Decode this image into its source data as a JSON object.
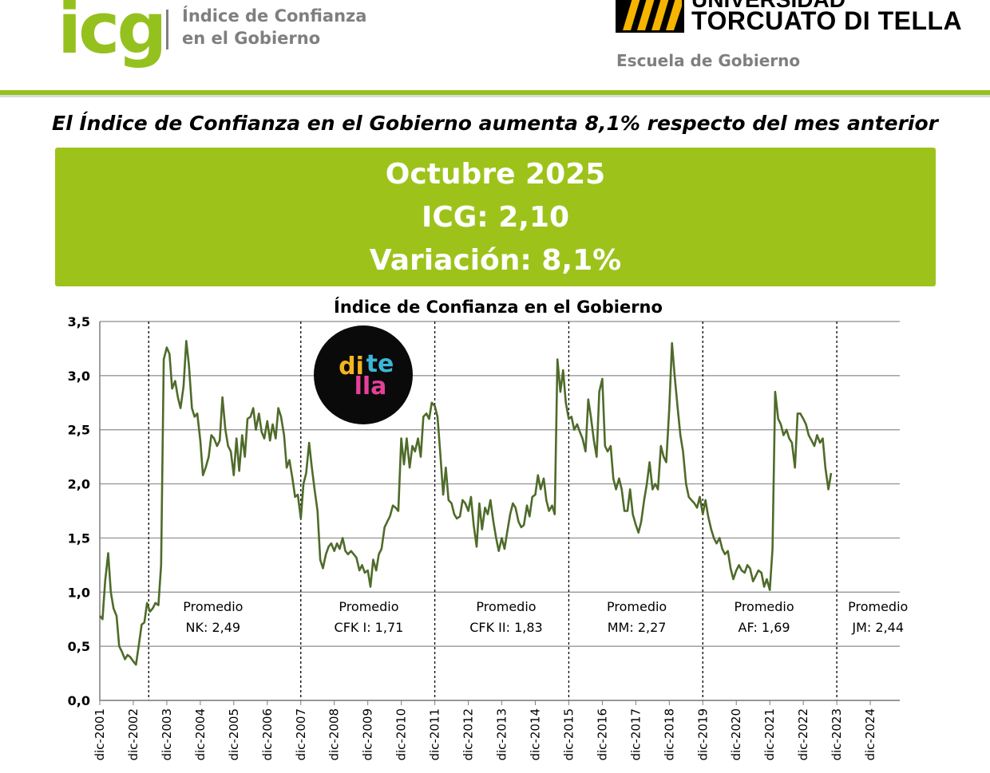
{
  "header": {
    "logo_mark": "icg",
    "logo_text_line1": "Índice de Confianza",
    "logo_text_line2": "en el Gobierno",
    "university_line1": "UNIVERSIDAD",
    "university_line2": "TORCUATO DI TELLA",
    "school": "Escuela de Gobierno"
  },
  "headline": "El Índice de Confianza en el Gobierno aumenta 8,1% respecto del mes anterior",
  "banner": {
    "month": "Octubre 2025",
    "icg": "ICG: 2,10",
    "variation": "Variación: 8,1%"
  },
  "colors": {
    "brand_green": "#9dc31b",
    "line": "#4f6b2a",
    "text_grey": "#7f7f7f"
  },
  "ditella_badge": {
    "line1": "di",
    "line2": "te",
    "line3": "lla"
  },
  "chart_data": {
    "type": "line",
    "title": "Índice de Confianza en el Gobierno",
    "xlabel": "",
    "ylabel": "",
    "ylim": [
      0,
      3.5
    ],
    "xlim": [
      2001.92,
      2025.8
    ],
    "y_ticks": [
      "0,0",
      "0,5",
      "1,0",
      "1,5",
      "2,0",
      "2,5",
      "3,0",
      "3,5"
    ],
    "x_ticks": [
      "dic-2001",
      "dic-2002",
      "dic-2003",
      "dic-2004",
      "dic-2005",
      "dic-2006",
      "dic-2007",
      "dic-2008",
      "dic-2009",
      "dic-2010",
      "dic-2011",
      "dic-2012",
      "dic-2013",
      "dic-2014",
      "dic-2015",
      "dic-2016",
      "dic-2017",
      "dic-2018",
      "dic-2019",
      "dic-2020",
      "dic-2021",
      "dic-2022",
      "dic-2023",
      "dic-2024"
    ],
    "x_tick_values": [
      2001.92,
      2002.92,
      2003.92,
      2004.92,
      2005.92,
      2006.92,
      2007.92,
      2008.92,
      2009.92,
      2010.92,
      2011.92,
      2012.92,
      2013.92,
      2014.92,
      2015.92,
      2016.92,
      2017.92,
      2018.92,
      2019.92,
      2020.92,
      2021.92,
      2022.92,
      2023.92,
      2024.92
    ],
    "grid": true,
    "term_dividers": [
      2003.38,
      2007.92,
      2011.92,
      2015.92,
      2019.92,
      2023.92
    ],
    "term_annotations": [
      {
        "x": 2005.3,
        "line1": "Promedio",
        "line2": "NK: 2,49"
      },
      {
        "x": 2009.95,
        "line1": "Promedio",
        "line2": "CFK I: 1,71"
      },
      {
        "x": 2014.05,
        "line1": "Promedio",
        "line2": "CFK II: 1,83"
      },
      {
        "x": 2017.95,
        "line1": "Promedio",
        "line2": "MM: 2,27"
      },
      {
        "x": 2021.75,
        "line1": "Promedio",
        "line2": "AF: 1,69"
      },
      {
        "x": 2025.15,
        "line1": "Promedio",
        "line2": "JM: 2,44"
      }
    ],
    "series": [
      {
        "name": "ICG",
        "points": [
          [
            2001.92,
            0.78
          ],
          [
            2002.0,
            0.75
          ],
          [
            2002.08,
            1.1
          ],
          [
            2002.17,
            1.36
          ],
          [
            2002.25,
            1.0
          ],
          [
            2002.33,
            0.85
          ],
          [
            2002.42,
            0.78
          ],
          [
            2002.5,
            0.5
          ],
          [
            2002.58,
            0.45
          ],
          [
            2002.67,
            0.38
          ],
          [
            2002.75,
            0.42
          ],
          [
            2002.83,
            0.4
          ],
          [
            2002.92,
            0.36
          ],
          [
            2003.0,
            0.33
          ],
          [
            2003.08,
            0.5
          ],
          [
            2003.17,
            0.7
          ],
          [
            2003.25,
            0.72
          ],
          [
            2003.33,
            0.9
          ],
          [
            2003.42,
            0.82
          ],
          [
            2003.5,
            0.85
          ],
          [
            2003.58,
            0.9
          ],
          [
            2003.67,
            0.88
          ],
          [
            2003.75,
            1.25
          ],
          [
            2003.83,
            3.15
          ],
          [
            2003.92,
            3.26
          ],
          [
            2004.0,
            3.2
          ],
          [
            2004.08,
            2.88
          ],
          [
            2004.17,
            2.95
          ],
          [
            2004.25,
            2.8
          ],
          [
            2004.33,
            2.7
          ],
          [
            2004.42,
            2.9
          ],
          [
            2004.5,
            3.32
          ],
          [
            2004.58,
            3.1
          ],
          [
            2004.67,
            2.7
          ],
          [
            2004.75,
            2.62
          ],
          [
            2004.83,
            2.65
          ],
          [
            2004.92,
            2.4
          ],
          [
            2005.0,
            2.08
          ],
          [
            2005.08,
            2.15
          ],
          [
            2005.17,
            2.25
          ],
          [
            2005.25,
            2.45
          ],
          [
            2005.33,
            2.42
          ],
          [
            2005.42,
            2.35
          ],
          [
            2005.5,
            2.4
          ],
          [
            2005.58,
            2.8
          ],
          [
            2005.67,
            2.5
          ],
          [
            2005.75,
            2.35
          ],
          [
            2005.83,
            2.3
          ],
          [
            2005.92,
            2.08
          ],
          [
            2006.0,
            2.42
          ],
          [
            2006.08,
            2.12
          ],
          [
            2006.17,
            2.45
          ],
          [
            2006.25,
            2.25
          ],
          [
            2006.33,
            2.6
          ],
          [
            2006.42,
            2.62
          ],
          [
            2006.5,
            2.7
          ],
          [
            2006.58,
            2.5
          ],
          [
            2006.67,
            2.65
          ],
          [
            2006.75,
            2.48
          ],
          [
            2006.83,
            2.42
          ],
          [
            2006.92,
            2.58
          ],
          [
            2007.0,
            2.4
          ],
          [
            2007.08,
            2.55
          ],
          [
            2007.17,
            2.42
          ],
          [
            2007.25,
            2.7
          ],
          [
            2007.33,
            2.62
          ],
          [
            2007.42,
            2.45
          ],
          [
            2007.5,
            2.15
          ],
          [
            2007.58,
            2.22
          ],
          [
            2007.67,
            2.05
          ],
          [
            2007.75,
            1.88
          ],
          [
            2007.83,
            1.9
          ],
          [
            2007.92,
            1.68
          ],
          [
            2008.0,
            2.0
          ],
          [
            2008.08,
            2.1
          ],
          [
            2008.17,
            2.38
          ],
          [
            2008.25,
            2.15
          ],
          [
            2008.33,
            1.95
          ],
          [
            2008.42,
            1.75
          ],
          [
            2008.5,
            1.3
          ],
          [
            2008.58,
            1.22
          ],
          [
            2008.67,
            1.35
          ],
          [
            2008.75,
            1.42
          ],
          [
            2008.83,
            1.45
          ],
          [
            2008.92,
            1.38
          ],
          [
            2009.0,
            1.45
          ],
          [
            2009.08,
            1.4
          ],
          [
            2009.17,
            1.5
          ],
          [
            2009.25,
            1.38
          ],
          [
            2009.33,
            1.35
          ],
          [
            2009.42,
            1.38
          ],
          [
            2009.5,
            1.35
          ],
          [
            2009.58,
            1.32
          ],
          [
            2009.67,
            1.2
          ],
          [
            2009.75,
            1.25
          ],
          [
            2009.83,
            1.18
          ],
          [
            2009.92,
            1.2
          ],
          [
            2010.0,
            1.05
          ],
          [
            2010.08,
            1.3
          ],
          [
            2010.17,
            1.2
          ],
          [
            2010.25,
            1.35
          ],
          [
            2010.33,
            1.4
          ],
          [
            2010.42,
            1.6
          ],
          [
            2010.5,
            1.65
          ],
          [
            2010.58,
            1.7
          ],
          [
            2010.67,
            1.8
          ],
          [
            2010.75,
            1.78
          ],
          [
            2010.83,
            1.75
          ],
          [
            2010.92,
            2.42
          ],
          [
            2011.0,
            2.18
          ],
          [
            2011.08,
            2.42
          ],
          [
            2011.17,
            2.15
          ],
          [
            2011.25,
            2.35
          ],
          [
            2011.33,
            2.3
          ],
          [
            2011.42,
            2.42
          ],
          [
            2011.5,
            2.25
          ],
          [
            2011.58,
            2.62
          ],
          [
            2011.67,
            2.65
          ],
          [
            2011.75,
            2.6
          ],
          [
            2011.83,
            2.75
          ],
          [
            2011.92,
            2.72
          ],
          [
            2012.0,
            2.62
          ],
          [
            2012.08,
            2.3
          ],
          [
            2012.17,
            1.9
          ],
          [
            2012.25,
            2.15
          ],
          [
            2012.33,
            1.85
          ],
          [
            2012.42,
            1.82
          ],
          [
            2012.5,
            1.72
          ],
          [
            2012.58,
            1.68
          ],
          [
            2012.67,
            1.7
          ],
          [
            2012.75,
            1.85
          ],
          [
            2012.83,
            1.82
          ],
          [
            2012.92,
            1.75
          ],
          [
            2013.0,
            1.88
          ],
          [
            2013.08,
            1.62
          ],
          [
            2013.17,
            1.42
          ],
          [
            2013.25,
            1.82
          ],
          [
            2013.33,
            1.58
          ],
          [
            2013.42,
            1.78
          ],
          [
            2013.5,
            1.72
          ],
          [
            2013.58,
            1.85
          ],
          [
            2013.67,
            1.65
          ],
          [
            2013.75,
            1.5
          ],
          [
            2013.83,
            1.38
          ],
          [
            2013.92,
            1.5
          ],
          [
            2014.0,
            1.4
          ],
          [
            2014.08,
            1.55
          ],
          [
            2014.17,
            1.72
          ],
          [
            2014.25,
            1.82
          ],
          [
            2014.33,
            1.78
          ],
          [
            2014.42,
            1.65
          ],
          [
            2014.5,
            1.6
          ],
          [
            2014.58,
            1.62
          ],
          [
            2014.67,
            1.8
          ],
          [
            2014.75,
            1.7
          ],
          [
            2014.83,
            1.88
          ],
          [
            2014.92,
            1.9
          ],
          [
            2015.0,
            2.08
          ],
          [
            2015.08,
            1.95
          ],
          [
            2015.17,
            2.05
          ],
          [
            2015.25,
            1.85
          ],
          [
            2015.33,
            1.75
          ],
          [
            2015.42,
            1.8
          ],
          [
            2015.5,
            1.72
          ],
          [
            2015.58,
            3.15
          ],
          [
            2015.67,
            2.85
          ],
          [
            2015.75,
            3.05
          ],
          [
            2015.83,
            2.75
          ],
          [
            2015.92,
            2.6
          ],
          [
            2016.0,
            2.62
          ],
          [
            2016.08,
            2.5
          ],
          [
            2016.17,
            2.55
          ],
          [
            2016.25,
            2.48
          ],
          [
            2016.33,
            2.42
          ],
          [
            2016.42,
            2.3
          ],
          [
            2016.5,
            2.78
          ],
          [
            2016.58,
            2.62
          ],
          [
            2016.67,
            2.4
          ],
          [
            2016.75,
            2.25
          ],
          [
            2016.83,
            2.85
          ],
          [
            2016.92,
            2.97
          ],
          [
            2017.0,
            2.35
          ],
          [
            2017.08,
            2.3
          ],
          [
            2017.17,
            2.35
          ],
          [
            2017.25,
            2.05
          ],
          [
            2017.33,
            1.95
          ],
          [
            2017.42,
            2.05
          ],
          [
            2017.5,
            1.95
          ],
          [
            2017.58,
            1.75
          ],
          [
            2017.67,
            1.75
          ],
          [
            2017.75,
            1.95
          ],
          [
            2017.83,
            1.72
          ],
          [
            2017.92,
            1.62
          ],
          [
            2018.0,
            1.55
          ],
          [
            2018.08,
            1.65
          ],
          [
            2018.17,
            1.85
          ],
          [
            2018.25,
            2.0
          ],
          [
            2018.33,
            2.2
          ],
          [
            2018.42,
            1.95
          ],
          [
            2018.5,
            2.0
          ],
          [
            2018.58,
            1.95
          ],
          [
            2018.67,
            2.35
          ],
          [
            2018.75,
            2.25
          ],
          [
            2018.83,
            2.2
          ],
          [
            2018.92,
            2.7
          ],
          [
            2019.0,
            3.3
          ],
          [
            2019.08,
            3.0
          ],
          [
            2019.17,
            2.7
          ],
          [
            2019.25,
            2.45
          ],
          [
            2019.33,
            2.3
          ],
          [
            2019.42,
            2.0
          ],
          [
            2019.5,
            1.88
          ],
          [
            2019.58,
            1.85
          ],
          [
            2019.67,
            1.82
          ],
          [
            2019.75,
            1.78
          ],
          [
            2019.83,
            1.88
          ],
          [
            2019.92,
            1.72
          ],
          [
            2020.0,
            1.85
          ],
          [
            2020.08,
            1.7
          ],
          [
            2020.17,
            1.58
          ],
          [
            2020.25,
            1.5
          ],
          [
            2020.33,
            1.45
          ],
          [
            2020.42,
            1.5
          ],
          [
            2020.5,
            1.4
          ],
          [
            2020.58,
            1.35
          ],
          [
            2020.67,
            1.38
          ],
          [
            2020.75,
            1.22
          ],
          [
            2020.83,
            1.12
          ],
          [
            2020.92,
            1.2
          ],
          [
            2021.0,
            1.25
          ],
          [
            2021.08,
            1.2
          ],
          [
            2021.17,
            1.18
          ],
          [
            2021.25,
            1.25
          ],
          [
            2021.33,
            1.22
          ],
          [
            2021.42,
            1.1
          ],
          [
            2021.5,
            1.15
          ],
          [
            2021.58,
            1.2
          ],
          [
            2021.67,
            1.18
          ],
          [
            2021.75,
            1.05
          ],
          [
            2021.83,
            1.12
          ],
          [
            2021.92,
            1.02
          ],
          [
            2022.0,
            1.4
          ],
          [
            2022.08,
            2.85
          ],
          [
            2022.17,
            2.6
          ],
          [
            2022.25,
            2.55
          ],
          [
            2022.33,
            2.45
          ],
          [
            2022.42,
            2.5
          ],
          [
            2022.5,
            2.42
          ],
          [
            2022.58,
            2.38
          ],
          [
            2022.67,
            2.15
          ],
          [
            2022.75,
            2.65
          ],
          [
            2022.83,
            2.65
          ],
          [
            2022.92,
            2.6
          ],
          [
            2023.0,
            2.55
          ],
          [
            2023.08,
            2.45
          ],
          [
            2023.17,
            2.4
          ],
          [
            2023.25,
            2.35
          ],
          [
            2023.33,
            2.45
          ],
          [
            2023.42,
            2.38
          ],
          [
            2023.5,
            2.42
          ],
          [
            2023.58,
            2.15
          ],
          [
            2023.67,
            1.95
          ],
          [
            2023.75,
            2.1
          ]
        ]
      }
    ]
  }
}
